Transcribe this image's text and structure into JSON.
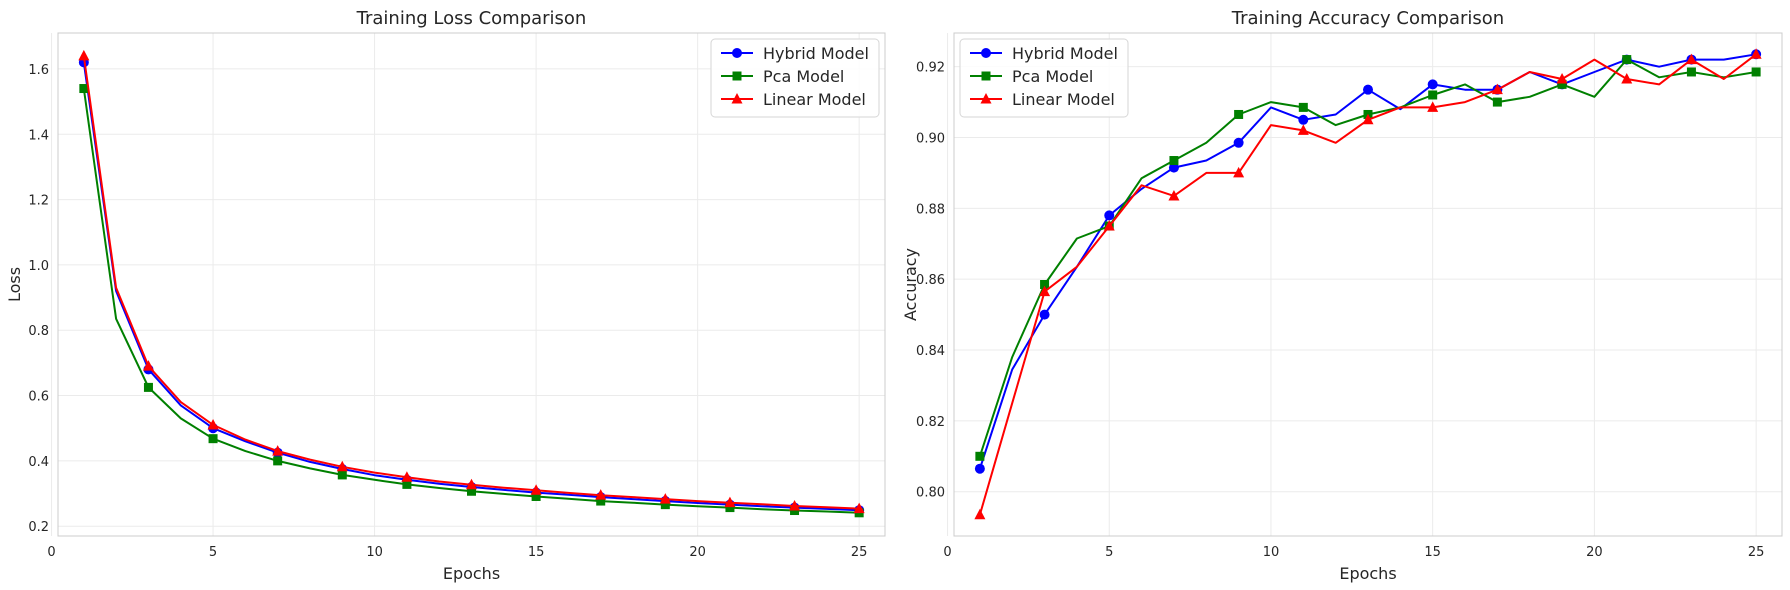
{
  "chart_data": [
    {
      "type": "line",
      "title": "Training Loss Comparison",
      "xlabel": "Epochs",
      "ylabel": "Loss",
      "xlim": [
        0.2,
        25.8
      ],
      "ylim": [
        0.17,
        1.71
      ],
      "xticks": [
        0,
        5,
        10,
        15,
        20,
        25
      ],
      "yticks": [
        0.2,
        0.4,
        0.6,
        0.8,
        1.0,
        1.2,
        1.4,
        1.6
      ],
      "ytick_labels": [
        "0.2",
        "0.4",
        "0.6",
        "0.8",
        "1.0",
        "1.2",
        "1.4",
        "1.6"
      ],
      "legend_position": "top-right",
      "grid": true,
      "x": [
        1,
        2,
        3,
        4,
        5,
        6,
        7,
        8,
        9,
        10,
        11,
        12,
        13,
        14,
        15,
        16,
        17,
        18,
        19,
        20,
        21,
        22,
        23,
        24,
        25
      ],
      "series": [
        {
          "name": "Hybrid Model",
          "color": "#0000ff",
          "marker": "circle",
          "values": [
            1.62,
            0.92,
            0.68,
            0.57,
            0.5,
            0.46,
            0.425,
            0.397,
            0.375,
            0.356,
            0.342,
            0.33,
            0.32,
            0.311,
            0.303,
            0.296,
            0.289,
            0.283,
            0.277,
            0.271,
            0.266,
            0.261,
            0.257,
            0.253,
            0.249
          ]
        },
        {
          "name": "Pca Model",
          "color": "#008000",
          "marker": "square",
          "values": [
            1.54,
            0.835,
            0.625,
            0.53,
            0.468,
            0.43,
            0.4,
            0.377,
            0.357,
            0.342,
            0.328,
            0.317,
            0.307,
            0.299,
            0.291,
            0.284,
            0.277,
            0.272,
            0.266,
            0.261,
            0.257,
            0.252,
            0.248,
            0.245,
            0.241
          ]
        },
        {
          "name": "Linear Model",
          "color": "#ff0000",
          "marker": "triangle",
          "values": [
            1.64,
            0.93,
            0.69,
            0.58,
            0.51,
            0.465,
            0.43,
            0.404,
            0.382,
            0.364,
            0.35,
            0.337,
            0.327,
            0.318,
            0.31,
            0.302,
            0.295,
            0.289,
            0.283,
            0.277,
            0.272,
            0.267,
            0.262,
            0.258,
            0.254
          ]
        }
      ]
    },
    {
      "type": "line",
      "title": "Training Accuracy Comparison",
      "xlabel": "Epochs",
      "ylabel": "Accuracy",
      "xlim": [
        0.2,
        25.8
      ],
      "ylim": [
        0.7875,
        0.9295
      ],
      "xticks": [
        0,
        5,
        10,
        15,
        20,
        25
      ],
      "yticks": [
        0.8,
        0.82,
        0.84,
        0.86,
        0.88,
        0.9,
        0.92
      ],
      "ytick_labels": [
        "0.80",
        "0.82",
        "0.84",
        "0.86",
        "0.88",
        "0.90",
        "0.92"
      ],
      "legend_position": "top-left",
      "grid": true,
      "x": [
        1,
        2,
        3,
        4,
        5,
        6,
        7,
        8,
        9,
        10,
        11,
        12,
        13,
        14,
        15,
        16,
        17,
        18,
        19,
        20,
        21,
        22,
        23,
        24,
        25
      ],
      "series": [
        {
          "name": "Hybrid Model",
          "color": "#0000ff",
          "marker": "circle",
          "values": [
            0.8065,
            0.8345,
            0.85,
            0.8635,
            0.878,
            0.8855,
            0.8915,
            0.8935,
            0.8985,
            0.9085,
            0.905,
            0.9065,
            0.9135,
            0.908,
            0.915,
            0.9135,
            0.9135,
            0.9185,
            0.915,
            0.9185,
            0.922,
            0.92,
            0.922,
            0.922,
            0.9235
          ]
        },
        {
          "name": "Pca Model",
          "color": "#008000",
          "marker": "square",
          "values": [
            0.81,
            0.838,
            0.8585,
            0.8715,
            0.875,
            0.8885,
            0.8935,
            0.8985,
            0.9065,
            0.91,
            0.9085,
            0.9035,
            0.9065,
            0.9085,
            0.912,
            0.915,
            0.91,
            0.9115,
            0.915,
            0.9115,
            0.922,
            0.917,
            0.9185,
            0.917,
            0.9185
          ]
        },
        {
          "name": "Linear Model",
          "color": "#ff0000",
          "marker": "triangle",
          "values": [
            0.7935,
            0.825,
            0.8565,
            0.8635,
            0.875,
            0.8865,
            0.8835,
            0.89,
            0.89,
            0.9035,
            0.902,
            0.8985,
            0.905,
            0.9085,
            0.9085,
            0.91,
            0.9135,
            0.9185,
            0.9165,
            0.922,
            0.9165,
            0.915,
            0.922,
            0.9165,
            0.9235
          ]
        }
      ]
    }
  ]
}
